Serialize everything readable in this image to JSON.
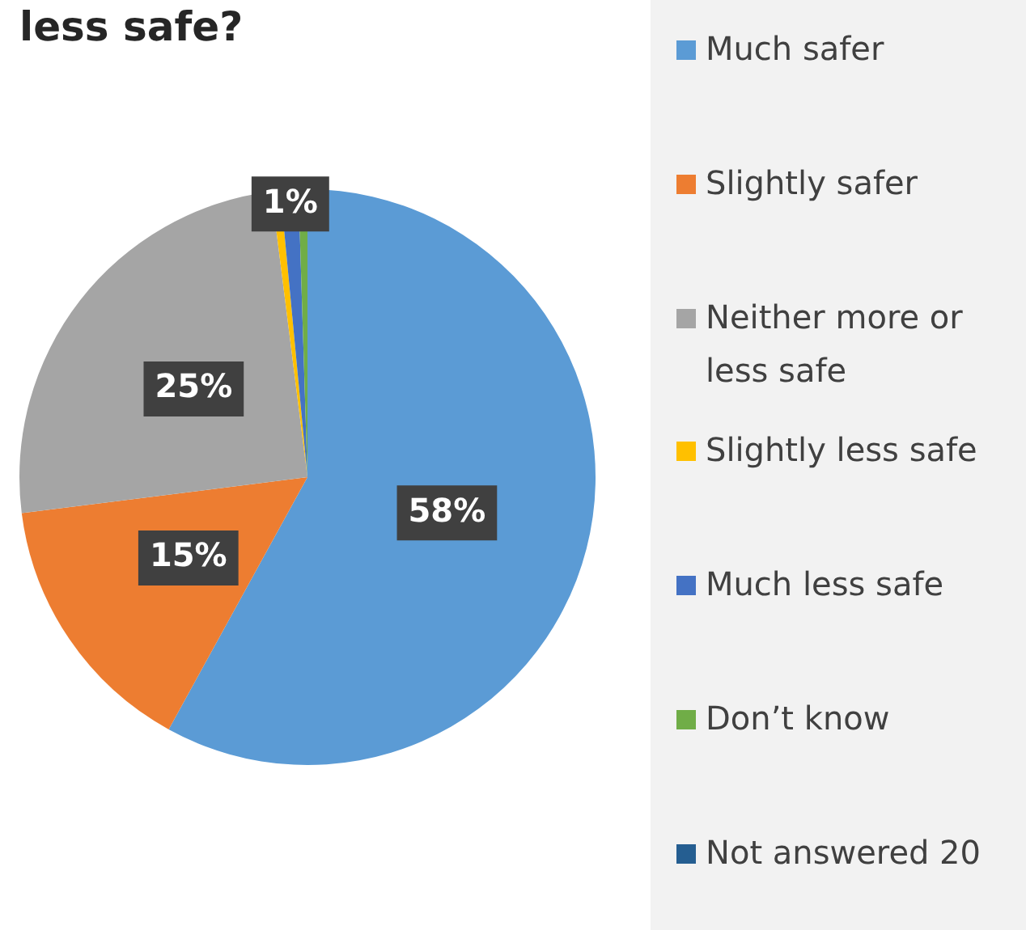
{
  "chart_data": {
    "type": "pie",
    "title": "less safe?",
    "categories": [
      "Much safer",
      "Slightly safer",
      "Neither more or less safe",
      "Slightly less safe",
      "Much less safe",
      "Don’t know",
      "Not answered 20"
    ],
    "values": [
      58,
      15,
      25,
      0.5,
      1,
      0.5,
      0
    ],
    "colors": [
      "#5b9bd5",
      "#ed7d31",
      "#a5a5a5",
      "#ffc000",
      "#4472c4",
      "#70ad47",
      "#255e91"
    ],
    "value_labels": [
      "58%",
      "15%",
      "25%",
      null,
      "1%",
      null,
      null
    ],
    "legend": "right"
  }
}
